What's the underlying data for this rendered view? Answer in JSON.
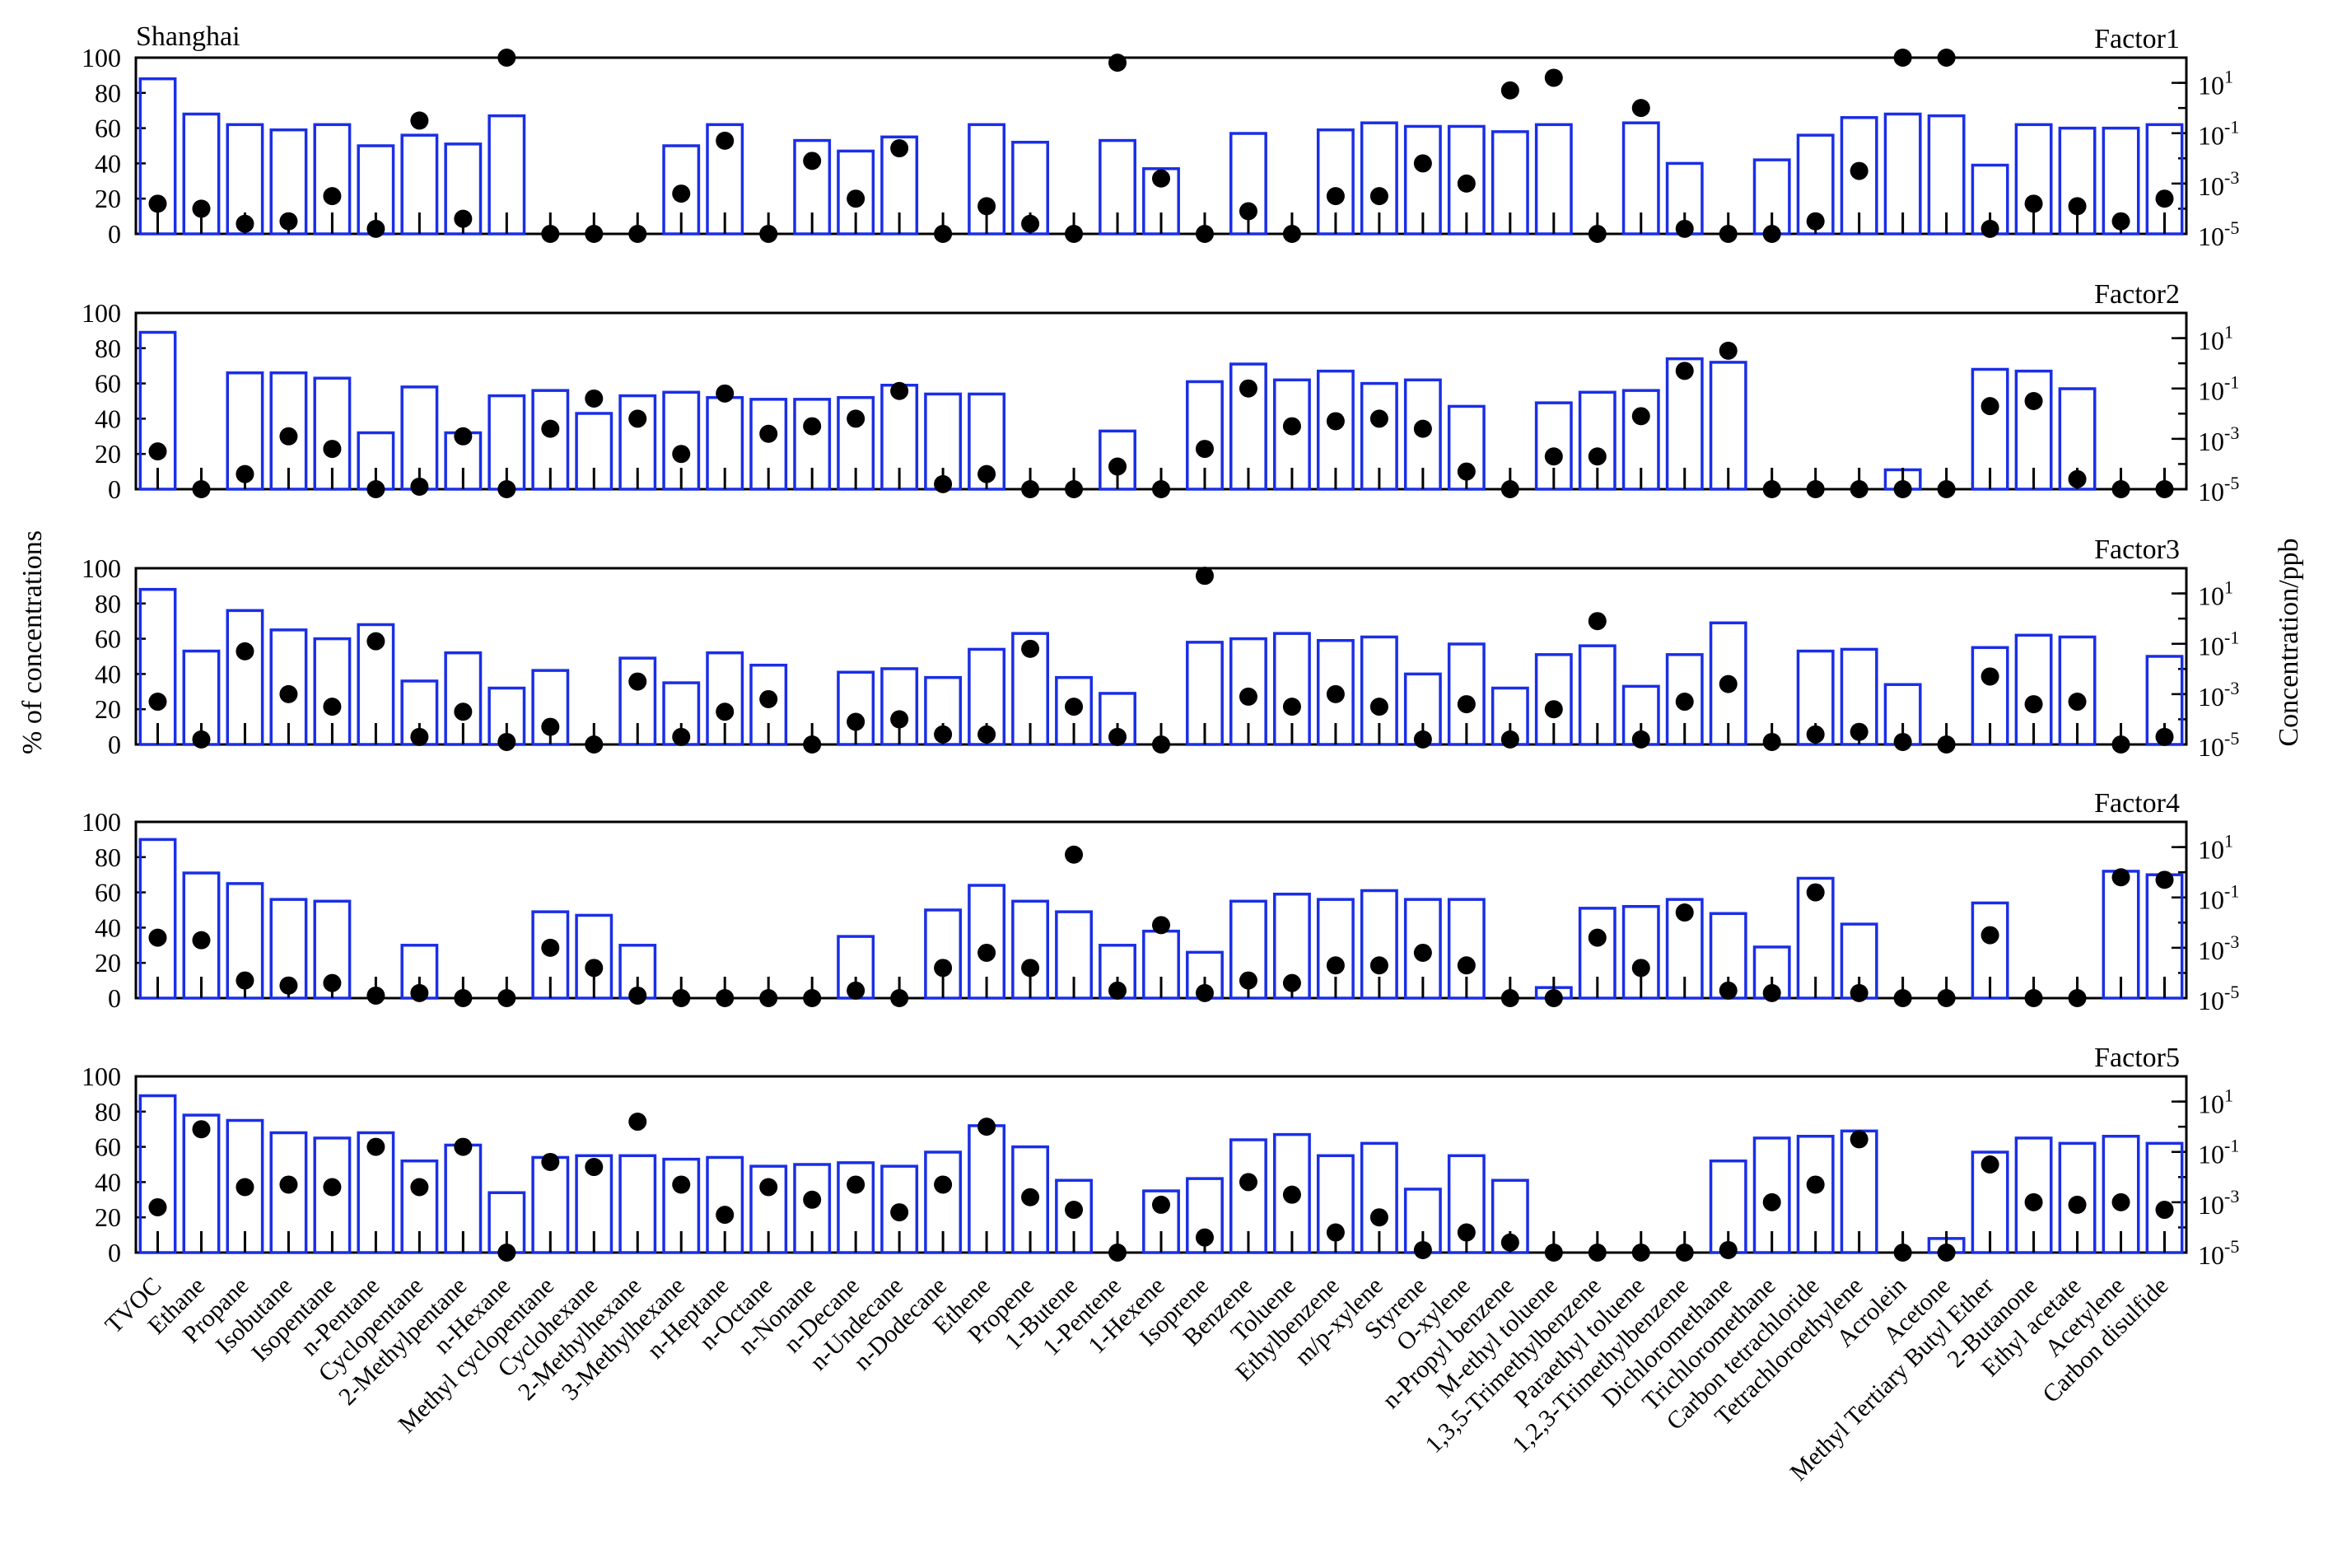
{
  "chart_data": {
    "type": "bar",
    "title": "Shanghai",
    "ylabel_left": "% of concentrations",
    "ylabel_right": "Concentration/ppb",
    "left_axis": {
      "range": [
        0,
        100
      ],
      "ticks": [
        "0",
        "20",
        "40",
        "60",
        "80",
        "100"
      ]
    },
    "right_axis": {
      "range_log10": [
        -5,
        2
      ],
      "ticks": [
        "10",
        "10",
        "10",
        "10"
      ],
      "tick_exponents": [
        "-5",
        "-3",
        "-1",
        "1"
      ]
    },
    "categories": [
      "TVOC",
      "Ethane",
      "Propane",
      "Isobutane",
      "Isopentane",
      "n-Pentane",
      "Cyclopentane",
      "2-Methylpentane",
      "n-Hexane",
      "Methyl cyclopentane",
      "Cyclohexane",
      "2-Methylhexane",
      "3-Methylhexane",
      "n-Heptane",
      "n-Octane",
      "n-Nonane",
      "n-Decane",
      "n-Undecane",
      "n-Dodecane",
      "Ethene",
      "Propene",
      "1-Butene",
      "1-Pentene",
      "1-Hexene",
      "Isoprene",
      "Benzene",
      "Toluene",
      "Ethylbenzene",
      "m/p-xylene",
      "Styrene",
      "O-xylene",
      "n-Propyl benzene",
      "M-ethyl toluene",
      "1,3,5-Trimethylbenzene",
      "Paraethyl toluene",
      "1,2,3-Trimethylbenzene",
      "Dichloromethane",
      "Trichloromethane",
      "Carbon tetrachloride",
      "Tetrachloroethylene",
      "Acrolein",
      "Acetone",
      "Methyl Tertiary Butyl Ether",
      "2-Butanone",
      "Ethyl acetate",
      "Acetylene",
      "Carbon disulfide"
    ],
    "panels": [
      {
        "name": "Factor1",
        "percent": [
          88,
          68,
          62,
          59,
          62,
          50,
          56,
          51,
          67,
          0,
          0,
          0,
          50,
          62,
          0,
          53,
          47,
          55,
          0,
          62,
          52,
          0,
          53,
          37,
          0,
          57,
          0,
          59,
          63,
          61,
          61,
          58,
          62,
          0,
          63,
          40,
          0,
          42,
          56,
          66,
          68,
          67,
          39,
          62,
          60,
          60,
          62
        ],
        "concentration_log10": [
          -3.8,
          -4.0,
          -4.6,
          -4.5,
          -3.5,
          -4.8,
          -0.5,
          -4.4,
          2.0,
          -5.0,
          -5.0,
          -5.0,
          -3.4,
          -1.3,
          -5.0,
          -2.1,
          -3.6,
          -1.6,
          -5.0,
          -3.9,
          -4.6,
          -5.0,
          1.8,
          -2.8,
          -5.0,
          -4.1,
          -5.0,
          -3.5,
          -3.5,
          -2.2,
          -3.0,
          0.7,
          1.2,
          -5.0,
          0.0,
          -4.8,
          -5.0,
          -5.0,
          -4.5,
          -2.5,
          2.0,
          2.0,
          -4.8,
          -3.8,
          -3.9,
          -4.5,
          -3.6
        ]
      },
      {
        "name": "Factor2",
        "percent": [
          89,
          0,
          66,
          66,
          63,
          32,
          58,
          32,
          53,
          56,
          43,
          53,
          55,
          52,
          51,
          51,
          52,
          59,
          54,
          54,
          0,
          0,
          33,
          0,
          61,
          71,
          62,
          67,
          60,
          62,
          47,
          0,
          49,
          55,
          56,
          74,
          72,
          0,
          0,
          0,
          11,
          0,
          68,
          67,
          57,
          0,
          0
        ],
        "concentration_log10": [
          -3.5,
          -5.0,
          -4.4,
          -2.9,
          -3.4,
          -5.0,
          -4.9,
          -2.9,
          -5.0,
          -2.6,
          -1.4,
          -2.2,
          -3.6,
          -1.2,
          -2.8,
          -2.5,
          -2.2,
          -1.1,
          -4.8,
          -4.4,
          -5.0,
          -5.0,
          -4.1,
          -5.0,
          -3.4,
          -1.0,
          -2.5,
          -2.3,
          -2.2,
          -2.6,
          -4.3,
          -5.0,
          -3.7,
          -3.7,
          -2.1,
          -0.3,
          0.5,
          -5.0,
          -5.0,
          -5.0,
          -5.0,
          -5.0,
          -1.7,
          -1.5,
          -4.6,
          -5.0,
          -5.0
        ]
      },
      {
        "name": "Factor3",
        "percent": [
          88,
          53,
          76,
          65,
          60,
          68,
          36,
          52,
          32,
          42,
          0,
          49,
          35,
          52,
          45,
          0,
          41,
          43,
          38,
          54,
          63,
          38,
          29,
          0,
          58,
          60,
          63,
          59,
          61,
          40,
          57,
          32,
          51,
          56,
          33,
          51,
          69,
          0,
          53,
          54,
          34,
          0,
          55,
          62,
          61,
          0,
          50
        ],
        "concentration_log10": [
          -3.3,
          -4.8,
          -1.3,
          -3.0,
          -3.5,
          -0.9,
          -4.7,
          -3.7,
          -4.9,
          -4.3,
          -5.0,
          -2.5,
          -4.7,
          -3.7,
          -3.2,
          -5.0,
          -4.1,
          -4.0,
          -4.6,
          -4.6,
          -1.2,
          -3.5,
          -4.7,
          -5.0,
          1.7,
          -3.1,
          -3.5,
          -3.0,
          -3.5,
          -4.8,
          -3.4,
          -4.8,
          -3.6,
          -0.1,
          -4.8,
          -3.3,
          -2.6,
          -4.9,
          -4.6,
          -4.5,
          -4.9,
          -5.0,
          -2.3,
          -3.4,
          -3.3,
          -5.0,
          -4.7
        ]
      },
      {
        "name": "Factor4",
        "percent": [
          90,
          71,
          65,
          56,
          55,
          0,
          30,
          0,
          0,
          49,
          47,
          30,
          0,
          0,
          0,
          0,
          35,
          0,
          50,
          64,
          55,
          49,
          30,
          38,
          26,
          55,
          59,
          56,
          61,
          56,
          56,
          0,
          6,
          51,
          52,
          56,
          48,
          29,
          68,
          42,
          0,
          0,
          54,
          0,
          0,
          72,
          70
        ],
        "concentration_log10": [
          -2.6,
          -2.7,
          -4.3,
          -4.5,
          -4.4,
          -4.9,
          -4.8,
          -5.0,
          -5.0,
          -3.0,
          -3.8,
          -4.9,
          -5.0,
          -5.0,
          -5.0,
          -5.0,
          -4.7,
          -5.0,
          -3.8,
          -3.2,
          -3.8,
          0.7,
          -4.7,
          -2.1,
          -4.8,
          -4.3,
          -4.4,
          -3.7,
          -3.7,
          -3.2,
          -3.7,
          -5.0,
          -5.0,
          -2.6,
          -3.8,
          -1.6,
          -4.7,
          -4.8,
          -0.8,
          -4.8,
          -5.0,
          -5.0,
          -2.5,
          -5.0,
          -5.0,
          -0.2,
          -0.3
        ]
      },
      {
        "name": "Factor5",
        "percent": [
          89,
          78,
          75,
          68,
          65,
          68,
          52,
          61,
          34,
          54,
          55,
          55,
          53,
          54,
          49,
          50,
          51,
          49,
          57,
          72,
          60,
          41,
          0,
          35,
          42,
          64,
          67,
          55,
          62,
          36,
          55,
          41,
          0,
          0,
          0,
          0,
          52,
          65,
          66,
          69,
          0,
          8,
          57,
          65,
          62,
          66,
          62
        ],
        "concentration_log10": [
          -3.2,
          -0.1,
          -2.4,
          -2.3,
          -2.4,
          -0.8,
          -2.4,
          -0.8,
          -5.0,
          -1.4,
          -1.6,
          0.2,
          -2.3,
          -3.5,
          -2.4,
          -2.9,
          -2.3,
          -3.4,
          -2.3,
          0.0,
          -2.8,
          -3.3,
          -5.0,
          -3.1,
          -4.4,
          -2.2,
          -2.7,
          -4.2,
          -3.6,
          -4.9,
          -4.2,
          -4.6,
          -5.0,
          -5.0,
          -5.0,
          -5.0,
          -4.9,
          -3.0,
          -2.3,
          -0.5,
          -5.0,
          -5.0,
          -1.5,
          -3.0,
          -3.1,
          -3.0,
          -3.3
        ]
      }
    ],
    "colors": {
      "bar": "#1a2ee6",
      "marker": "#000000",
      "axis": "#000000"
    }
  }
}
